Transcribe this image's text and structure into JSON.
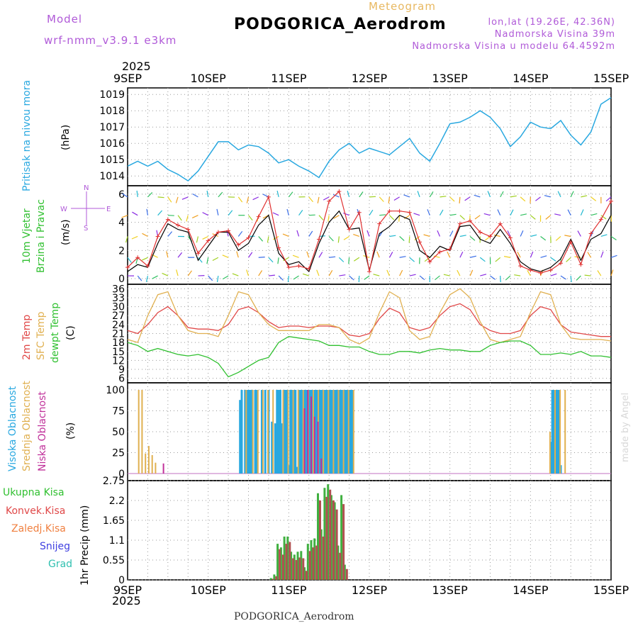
{
  "header": {
    "model_label": "Model",
    "model_name": "wrf-nmm_v3.9.1  e3km",
    "meteogram": "Meteogram",
    "station": "PODGORICA_Aerodrom",
    "lonlat": "lon,lat (19.26E, 42.36N)",
    "altitude": "Nadmorska Visina 39m",
    "altitude_model": "Nadmorska Visina u modelu 64.4592m",
    "caption": "PODGORICA_Aerodrom",
    "watermark": "made by Angel"
  },
  "colors": {
    "pressure": "#29a8e0",
    "wind_speed": "#000000",
    "wind_gust": "#e03030",
    "temp2m": "#e04848",
    "sfc_temp": "#e0b050",
    "dewpoint": "#30c030",
    "high_cloud": "#29a8e0",
    "mid_cloud": "#e0b050",
    "low_cloud": "#c0309a",
    "total_precip": "#40b040",
    "conv_precip": "#b05050"
  },
  "chart_data": [
    {
      "type": "line",
      "panel": "pressure",
      "title": "PODGORICA_Aerodrom",
      "top_year": "2025",
      "bottom_year": "2025",
      "xticks": [
        "9SEP",
        "10SEP",
        "11SEP",
        "12SEP",
        "13SEP",
        "14SEP",
        "15SEP"
      ],
      "ylabel_left": "Pritisak na nivou mora",
      "ylabel_unit": "(hPa)",
      "ylim": [
        1013.4,
        1019.4
      ],
      "yticks": [
        1014,
        1015,
        1016,
        1017,
        1018,
        1019
      ],
      "x_hours": [
        0,
        3,
        6,
        9,
        12,
        15,
        18,
        21,
        24,
        27,
        30,
        33,
        36,
        39,
        42,
        45,
        48,
        51,
        54,
        57,
        60,
        63,
        66,
        69,
        72,
        75,
        78,
        81,
        84,
        87,
        90,
        93,
        96,
        99,
        102,
        105,
        108,
        111,
        114,
        117,
        120,
        123,
        126,
        129,
        132,
        135,
        138,
        141,
        144
      ],
      "values": [
        1014.6,
        1014.9,
        1014.6,
        1014.9,
        1014.4,
        1014.1,
        1013.7,
        1014.3,
        1015.2,
        1016.1,
        1016.1,
        1015.6,
        1015.9,
        1015.8,
        1015.4,
        1014.8,
        1015.0,
        1014.6,
        1014.3,
        1013.9,
        1014.9,
        1015.6,
        1016.0,
        1015.4,
        1015.7,
        1015.5,
        1015.3,
        1015.8,
        1016.3,
        1015.4,
        1014.9,
        1016.0,
        1017.2,
        1017.3,
        1017.6,
        1018.0,
        1017.6,
        1016.9,
        1015.8,
        1016.4,
        1017.3,
        1017.0,
        1016.9,
        1017.4,
        1016.5,
        1015.9,
        1016.7,
        1018.4,
        1018.8
      ]
    },
    {
      "type": "line",
      "panel": "wind",
      "ylabel_left": "10m Vjetar",
      "ylabel_left2": "Brzina i Pravac",
      "ylabel_unit": "(m/s)",
      "compass": {
        "n": "N",
        "s": "S",
        "e": "E",
        "w": "W"
      },
      "ylim": [
        -0.4,
        6.6
      ],
      "yticks": [
        0,
        2,
        4,
        6
      ],
      "x_hours": [
        0,
        3,
        6,
        9,
        12,
        15,
        18,
        21,
        24,
        27,
        30,
        33,
        36,
        39,
        42,
        45,
        48,
        51,
        54,
        57,
        60,
        63,
        66,
        69,
        72,
        75,
        78,
        81,
        84,
        87,
        90,
        93,
        96,
        99,
        102,
        105,
        108,
        111,
        114,
        117,
        120,
        123,
        126,
        129,
        132,
        135,
        138,
        141,
        144
      ],
      "series": [
        {
          "name": "Brzina",
          "values": [
            0.5,
            1.0,
            0.8,
            2.5,
            3.9,
            3.5,
            3.3,
            1.3,
            2.3,
            3.3,
            3.3,
            2.0,
            2.5,
            3.8,
            4.5,
            1.8,
            1.0,
            1.2,
            0.5,
            2.5,
            4.0,
            4.8,
            3.5,
            3.6,
            0.6,
            3.2,
            3.7,
            4.5,
            4.2,
            2.0,
            1.5,
            2.3,
            2.0,
            3.7,
            3.8,
            2.8,
            2.5,
            3.5,
            2.5,
            1.2,
            0.7,
            0.5,
            0.8,
            1.4,
            2.8,
            1.3,
            2.8,
            3.2,
            4.5
          ]
        },
        {
          "name": "Udari",
          "values": [
            0.8,
            1.5,
            0.9,
            3.0,
            4.2,
            3.8,
            3.5,
            1.8,
            2.7,
            3.3,
            3.4,
            2.4,
            2.9,
            4.4,
            5.8,
            2.2,
            0.8,
            0.9,
            0.7,
            2.8,
            5.5,
            6.2,
            3.5,
            4.7,
            0.5,
            3.9,
            4.8,
            4.8,
            4.7,
            2.6,
            1.2,
            1.9,
            2.1,
            3.9,
            4.1,
            3.3,
            3.0,
            3.9,
            2.9,
            0.9,
            0.6,
            0.4,
            0.6,
            1.1,
            2.6,
            1.0,
            3.2,
            4.2,
            5.5
          ]
        }
      ]
    },
    {
      "type": "line",
      "panel": "temperature",
      "ylabel_left": "2m Temp",
      "ylabel_left2": "SFC Temp",
      "ylabel_left3": "dewpt Temp",
      "ylabel_unit": "(C)",
      "ylim": [
        4.5,
        37.5
      ],
      "yticks": [
        6,
        9,
        12,
        15,
        18,
        21,
        24,
        27,
        30,
        33,
        36
      ],
      "x_hours": [
        0,
        3,
        6,
        9,
        12,
        15,
        18,
        21,
        24,
        27,
        30,
        33,
        36,
        39,
        42,
        45,
        48,
        51,
        54,
        57,
        60,
        63,
        66,
        69,
        72,
        75,
        78,
        81,
        84,
        87,
        90,
        93,
        96,
        99,
        102,
        105,
        108,
        111,
        114,
        117,
        120,
        123,
        126,
        129,
        132,
        135,
        138,
        141,
        144
      ],
      "series": [
        {
          "name": "2m Temp",
          "values": [
            22,
            21,
            24,
            28,
            30,
            27,
            23,
            22.5,
            22.5,
            22,
            24,
            29,
            30,
            28,
            25,
            23,
            23.5,
            23.5,
            23,
            23.5,
            23.5,
            23,
            20.5,
            20,
            21,
            26,
            29.5,
            28,
            23,
            22,
            23,
            27,
            30,
            31,
            29,
            24,
            22,
            21,
            21,
            22,
            27,
            30,
            29,
            24,
            21.5,
            21,
            20.5,
            20,
            20
          ]
        },
        {
          "name": "SFC Temp",
          "values": [
            19,
            18,
            27,
            34,
            35,
            27,
            22,
            21,
            21,
            20,
            27,
            35,
            34,
            28,
            24,
            22,
            22,
            22,
            22,
            24,
            24,
            23,
            19,
            17.5,
            19.5,
            28,
            35,
            33,
            22,
            19,
            20,
            28,
            34,
            36,
            33,
            25,
            19,
            18,
            19,
            20,
            28,
            35,
            34,
            24,
            19.5,
            19,
            19,
            19,
            18.5
          ]
        },
        {
          "name": "dewpt Temp",
          "values": [
            18,
            17,
            15,
            16,
            15,
            14,
            13.5,
            14,
            13,
            11,
            6.5,
            8,
            10,
            12,
            13,
            18,
            20,
            19.5,
            19,
            18.5,
            17,
            17,
            16.5,
            16.5,
            15,
            14,
            14,
            15,
            15,
            14.5,
            15.5,
            16,
            15.5,
            15.5,
            15,
            15,
            17,
            18,
            18.5,
            18.5,
            17,
            14,
            14,
            14.5,
            14,
            15,
            13.5,
            13.5,
            13
          ]
        }
      ]
    },
    {
      "type": "bar",
      "panel": "clouds",
      "ylabel_left": "Visoka Oblacnost",
      "ylabel_left2": "Srednja Oblacnost",
      "ylabel_left3": "Niska Oblacnost",
      "ylabel_unit": "(%)",
      "ylim": [
        0,
        100
      ],
      "yticks": [
        0,
        25,
        50,
        75,
        100
      ],
      "series": [
        {
          "name": "Visoka",
          "hours": [
            33.5,
            34,
            35,
            35.5,
            36,
            36.5,
            37,
            38,
            38.5,
            40,
            41,
            42,
            43,
            44,
            44.5,
            45,
            45.5,
            46,
            46.5,
            47,
            47.5,
            48,
            48.5,
            49,
            49.5,
            50,
            50.5,
            51,
            51.5,
            52,
            52.5,
            53,
            53.5,
            54,
            54.5,
            55,
            55.5,
            56,
            56.5,
            57,
            57.5,
            58,
            58.5,
            59,
            59.5,
            60,
            60.5,
            61,
            61.5,
            62,
            62.5,
            63,
            63.5,
            64,
            64.5,
            65,
            65.5,
            66,
            66.5,
            67,
            126,
            126.5,
            127,
            127.5,
            128,
            128.5,
            129
          ],
          "values": [
            88,
            100,
            100,
            100,
            100,
            100,
            100,
            100,
            100,
            100,
            100,
            100,
            62,
            60,
            100,
            100,
            100,
            60,
            100,
            100,
            100,
            10,
            100,
            100,
            100,
            100,
            8,
            100,
            100,
            100,
            100,
            100,
            100,
            100,
            100,
            100,
            100,
            100,
            100,
            100,
            100,
            100,
            100,
            100,
            100,
            100,
            100,
            100,
            100,
            100,
            100,
            100,
            100,
            100,
            100,
            100,
            100,
            100,
            100,
            100,
            38,
            100,
            100,
            100,
            100,
            100,
            10
          ]
        },
        {
          "name": "Srednja",
          "hours": [
            3,
            4,
            5,
            6,
            7,
            8,
            35,
            37,
            38.5,
            40,
            41.5,
            43,
            46,
            47.5,
            49,
            50.5,
            52,
            53.5,
            55,
            56.5,
            58,
            59.5,
            61,
            62.5,
            64,
            65.5,
            67,
            125.5,
            127,
            128.5,
            130
          ],
          "values": [
            100,
            100,
            24,
            33,
            22,
            13,
            100,
            100,
            100,
            100,
            100,
            100,
            100,
            100,
            100,
            100,
            100,
            100,
            100,
            100,
            100,
            100,
            100,
            100,
            100,
            100,
            100,
            50,
            100,
            100,
            100
          ]
        },
        {
          "name": "Niska",
          "hours": [
            11,
            53,
            54,
            55,
            56,
            57,
            58
          ],
          "values": [
            12,
            78,
            100,
            92,
            68,
            62,
            18
          ]
        }
      ]
    },
    {
      "type": "bar",
      "panel": "precipitation",
      "legend": [
        "Ukupna Kisa",
        "Konvek.Kisa",
        "Zaledj.Kisa",
        "Snijeg",
        "Grad"
      ],
      "ylabel_unit": "1hr Precip (mm)",
      "ylim": [
        0,
        2.75
      ],
      "yticks": [
        0,
        0.55,
        1.1,
        1.65,
        2.2,
        2.75
      ],
      "series": [
        {
          "name": "Ukupna Kisa",
          "hours": [
            43,
            44,
            45,
            46,
            47,
            48,
            49,
            50,
            51,
            52,
            53,
            54,
            55,
            56,
            57,
            58,
            59,
            60,
            61,
            62,
            63,
            64,
            65
          ],
          "values": [
            0.05,
            0.15,
            1.0,
            0.9,
            1.2,
            1.2,
            0.78,
            0.7,
            0.78,
            0.8,
            0.35,
            1.0,
            1.1,
            1.15,
            2.4,
            1.4,
            2.55,
            2.65,
            2.35,
            2.15,
            0.95,
            2.35,
            0.42
          ]
        },
        {
          "name": "Konvek.Kisa",
          "hours": [
            43,
            44,
            45,
            46,
            47,
            48,
            49,
            50,
            51,
            52,
            53,
            54,
            55,
            56,
            57,
            58,
            59,
            60,
            61,
            62,
            63,
            64,
            65
          ],
          "values": [
            0.03,
            0.1,
            0.85,
            0.7,
            1.0,
            1.05,
            0.6,
            0.55,
            0.62,
            0.6,
            0.25,
            0.8,
            0.9,
            0.95,
            2.2,
            1.2,
            2.3,
            2.5,
            2.2,
            1.95,
            0.75,
            2.1,
            0.3
          ]
        }
      ]
    }
  ]
}
